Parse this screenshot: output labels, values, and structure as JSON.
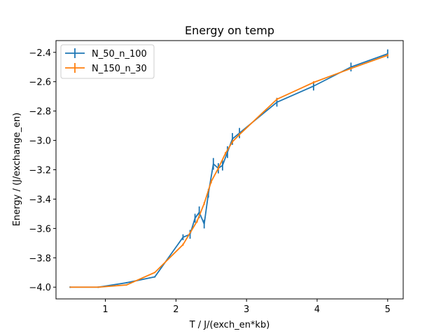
{
  "chart_data": {
    "type": "line",
    "title": "Energy on temp",
    "xlabel": "T / J/(exch_en*kb)",
    "ylabel": "Energy / (J/exchange_en)",
    "xlim": [
      0.3,
      5.22
    ],
    "ylim": [
      -4.08,
      -2.32
    ],
    "xticks": [
      1,
      2,
      3,
      4,
      5
    ],
    "xtick_labels": [
      "1",
      "2",
      "3",
      "4",
      "5"
    ],
    "yticks": [
      -4.0,
      -3.8,
      -3.6,
      -3.4,
      -3.2,
      -3.0,
      -2.8,
      -2.6,
      -2.4
    ],
    "ytick_labels": [
      "−4.0",
      "−3.8",
      "−3.6",
      "−3.4",
      "−3.2",
      "−3.0",
      "−2.8",
      "−2.6",
      "−2.4"
    ],
    "grid": false,
    "legend_position": "top-left",
    "series": [
      {
        "name": "N_50_n_100",
        "color": "#1f77b4",
        "x": [
          0.5,
          0.9,
          1.3,
          1.7,
          2.1,
          2.2,
          2.27,
          2.33,
          2.4,
          2.46,
          2.53,
          2.6,
          2.66,
          2.73,
          2.8,
          2.9,
          3.43,
          3.95,
          4.48,
          5.0
        ],
        "y": [
          -4.0,
          -4.0,
          -3.97,
          -3.93,
          -3.66,
          -3.64,
          -3.53,
          -3.49,
          -3.57,
          -3.36,
          -3.16,
          -3.19,
          -3.17,
          -3.08,
          -2.99,
          -2.95,
          -2.74,
          -2.63,
          -2.5,
          -2.41
        ],
        "yerr": [
          0.005,
          0.005,
          0.005,
          0.005,
          0.02,
          0.03,
          0.03,
          0.04,
          0.03,
          0.03,
          0.04,
          0.035,
          0.035,
          0.04,
          0.04,
          0.035,
          0.03,
          0.03,
          0.03,
          0.03
        ]
      },
      {
        "name": "N_150_n_30",
        "color": "#ff7f0e",
        "x": [
          0.5,
          0.9,
          1.3,
          1.7,
          2.1,
          2.3,
          2.4,
          2.5,
          2.6,
          2.7,
          2.8,
          2.9,
          3.43,
          3.95,
          4.48,
          5.0
        ],
        "y": [
          -4.0,
          -4.0,
          -3.985,
          -3.9,
          -3.71,
          -3.55,
          -3.43,
          -3.28,
          -3.19,
          -3.09,
          -3.01,
          -2.96,
          -2.72,
          -2.605,
          -2.51,
          -2.42
        ],
        "yerr": [
          0.003,
          0.003,
          0.003,
          0.004,
          0.008,
          0.01,
          0.01,
          0.012,
          0.012,
          0.01,
          0.01,
          0.01,
          0.008,
          0.008,
          0.008,
          0.008
        ]
      }
    ]
  }
}
